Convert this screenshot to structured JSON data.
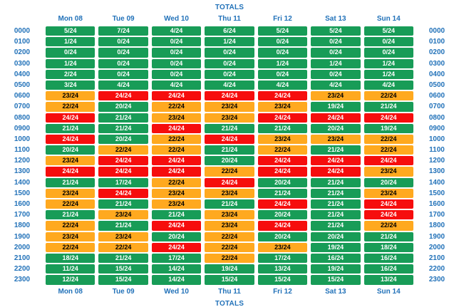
{
  "titles": {
    "top": "TOTALS",
    "bottom": "TOTALS"
  },
  "palette": {
    "header_blue": "#2272b9",
    "green": "#189c57",
    "amber": "#ffa91f",
    "red": "#f60d0d",
    "text_on_green": "#ffffff",
    "text_on_amber": "#000000",
    "text_on_red": "#ffffff",
    "background": "#ffffff"
  },
  "chart_data": {
    "type": "heatmap",
    "title": "TOTALS",
    "columns": [
      "Mon 08",
      "Tue 09",
      "Wed 10",
      "Thu 11",
      "Fri 12",
      "Sat 13",
      "Sun 14"
    ],
    "rows": [
      "0000",
      "0100",
      "0200",
      "0300",
      "0400",
      "0500",
      "0600",
      "0700",
      "0800",
      "0900",
      "1000",
      "1100",
      "1200",
      "1300",
      "1400",
      "1500",
      "1600",
      "1700",
      "1800",
      "1900",
      "2000",
      "2100",
      "2200",
      "2300"
    ],
    "denominator": 24,
    "value_format": "{v}/{den}",
    "legend_position": "none",
    "grid": false,
    "color_legend": {
      "g": "green (<=21)",
      "a": "amber (22-23)",
      "r": "red (24)"
    },
    "values": [
      [
        5,
        7,
        4,
        6,
        5,
        5,
        5
      ],
      [
        1,
        0,
        0,
        1,
        0,
        0,
        0
      ],
      [
        0,
        0,
        0,
        0,
        0,
        0,
        0
      ],
      [
        1,
        0,
        0,
        0,
        1,
        1,
        1
      ],
      [
        2,
        0,
        0,
        0,
        0,
        0,
        1
      ],
      [
        3,
        4,
        4,
        4,
        4,
        4,
        4
      ],
      [
        23,
        24,
        24,
        24,
        24,
        23,
        22
      ],
      [
        22,
        20,
        22,
        23,
        23,
        19,
        21
      ],
      [
        24,
        21,
        23,
        23,
        24,
        24,
        24
      ],
      [
        21,
        21,
        24,
        21,
        21,
        20,
        19
      ],
      [
        24,
        20,
        22,
        24,
        23,
        23,
        22
      ],
      [
        20,
        22,
        22,
        21,
        22,
        21,
        22
      ],
      [
        23,
        24,
        24,
        20,
        24,
        24,
        24
      ],
      [
        24,
        24,
        24,
        22,
        24,
        24,
        23
      ],
      [
        21,
        17,
        22,
        24,
        20,
        21,
        20
      ],
      [
        23,
        24,
        23,
        23,
        21,
        21,
        23
      ],
      [
        22,
        21,
        23,
        21,
        24,
        21,
        24
      ],
      [
        21,
        23,
        21,
        23,
        20,
        21,
        24
      ],
      [
        22,
        21,
        24,
        23,
        24,
        21,
        22
      ],
      [
        23,
        23,
        20,
        22,
        20,
        20,
        21
      ],
      [
        22,
        22,
        24,
        22,
        23,
        19,
        18
      ],
      [
        18,
        21,
        17,
        22,
        17,
        16,
        16
      ],
      [
        11,
        15,
        14,
        19,
        13,
        19,
        16
      ],
      [
        12,
        15,
        14,
        15,
        15,
        15,
        13
      ]
    ],
    "colors": [
      [
        "g",
        "g",
        "g",
        "g",
        "g",
        "g",
        "g"
      ],
      [
        "g",
        "g",
        "g",
        "g",
        "g",
        "g",
        "g"
      ],
      [
        "g",
        "g",
        "g",
        "g",
        "g",
        "g",
        "g"
      ],
      [
        "g",
        "g",
        "g",
        "g",
        "g",
        "g",
        "g"
      ],
      [
        "g",
        "g",
        "g",
        "g",
        "g",
        "g",
        "g"
      ],
      [
        "g",
        "g",
        "g",
        "g",
        "g",
        "g",
        "g"
      ],
      [
        "a",
        "r",
        "r",
        "r",
        "r",
        "a",
        "a"
      ],
      [
        "a",
        "g",
        "a",
        "a",
        "a",
        "g",
        "g"
      ],
      [
        "r",
        "g",
        "a",
        "a",
        "r",
        "r",
        "r"
      ],
      [
        "g",
        "g",
        "r",
        "g",
        "g",
        "g",
        "g"
      ],
      [
        "r",
        "g",
        "a",
        "r",
        "a",
        "a",
        "a"
      ],
      [
        "g",
        "a",
        "a",
        "g",
        "a",
        "g",
        "a"
      ],
      [
        "a",
        "r",
        "r",
        "g",
        "r",
        "r",
        "r"
      ],
      [
        "r",
        "r",
        "r",
        "a",
        "r",
        "r",
        "a"
      ],
      [
        "g",
        "g",
        "a",
        "r",
        "g",
        "g",
        "g"
      ],
      [
        "a",
        "r",
        "a",
        "a",
        "g",
        "g",
        "a"
      ],
      [
        "a",
        "g",
        "a",
        "g",
        "r",
        "g",
        "r"
      ],
      [
        "g",
        "a",
        "g",
        "a",
        "g",
        "g",
        "r"
      ],
      [
        "a",
        "g",
        "r",
        "a",
        "r",
        "g",
        "a"
      ],
      [
        "a",
        "a",
        "g",
        "a",
        "g",
        "g",
        "g"
      ],
      [
        "a",
        "a",
        "r",
        "a",
        "a",
        "g",
        "g"
      ],
      [
        "g",
        "g",
        "g",
        "a",
        "g",
        "g",
        "g"
      ],
      [
        "g",
        "g",
        "g",
        "g",
        "g",
        "g",
        "g"
      ],
      [
        "g",
        "g",
        "g",
        "g",
        "g",
        "g",
        "g"
      ]
    ]
  }
}
